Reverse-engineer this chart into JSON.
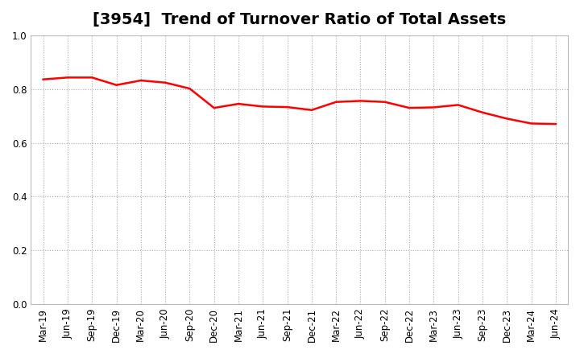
{
  "title": "[3954]  Trend of Turnover Ratio of Total Assets",
  "x_labels": [
    "Mar-19",
    "Jun-19",
    "Sep-19",
    "Dec-19",
    "Mar-20",
    "Jun-20",
    "Sep-20",
    "Dec-20",
    "Mar-21",
    "Jun-21",
    "Sep-21",
    "Dec-21",
    "Mar-22",
    "Jun-22",
    "Sep-22",
    "Dec-22",
    "Mar-23",
    "Jun-23",
    "Sep-23",
    "Dec-23",
    "Mar-24",
    "Jun-24"
  ],
  "values": [
    0.836,
    0.843,
    0.843,
    0.815,
    0.832,
    0.824,
    0.802,
    0.73,
    0.745,
    0.735,
    0.733,
    0.722,
    0.752,
    0.756,
    0.752,
    0.73,
    0.732,
    0.741,
    0.713,
    0.69,
    0.672,
    0.67
  ],
  "line_color": "#ff0000",
  "line_width": 1.8,
  "ylim": [
    0.0,
    1.0
  ],
  "yticks": [
    0.0,
    0.2,
    0.4,
    0.6,
    0.8,
    1.0
  ],
  "grid_color": "#aaaaaa",
  "background_color": "#ffffff",
  "title_fontsize": 14,
  "tick_fontsize": 8.5
}
